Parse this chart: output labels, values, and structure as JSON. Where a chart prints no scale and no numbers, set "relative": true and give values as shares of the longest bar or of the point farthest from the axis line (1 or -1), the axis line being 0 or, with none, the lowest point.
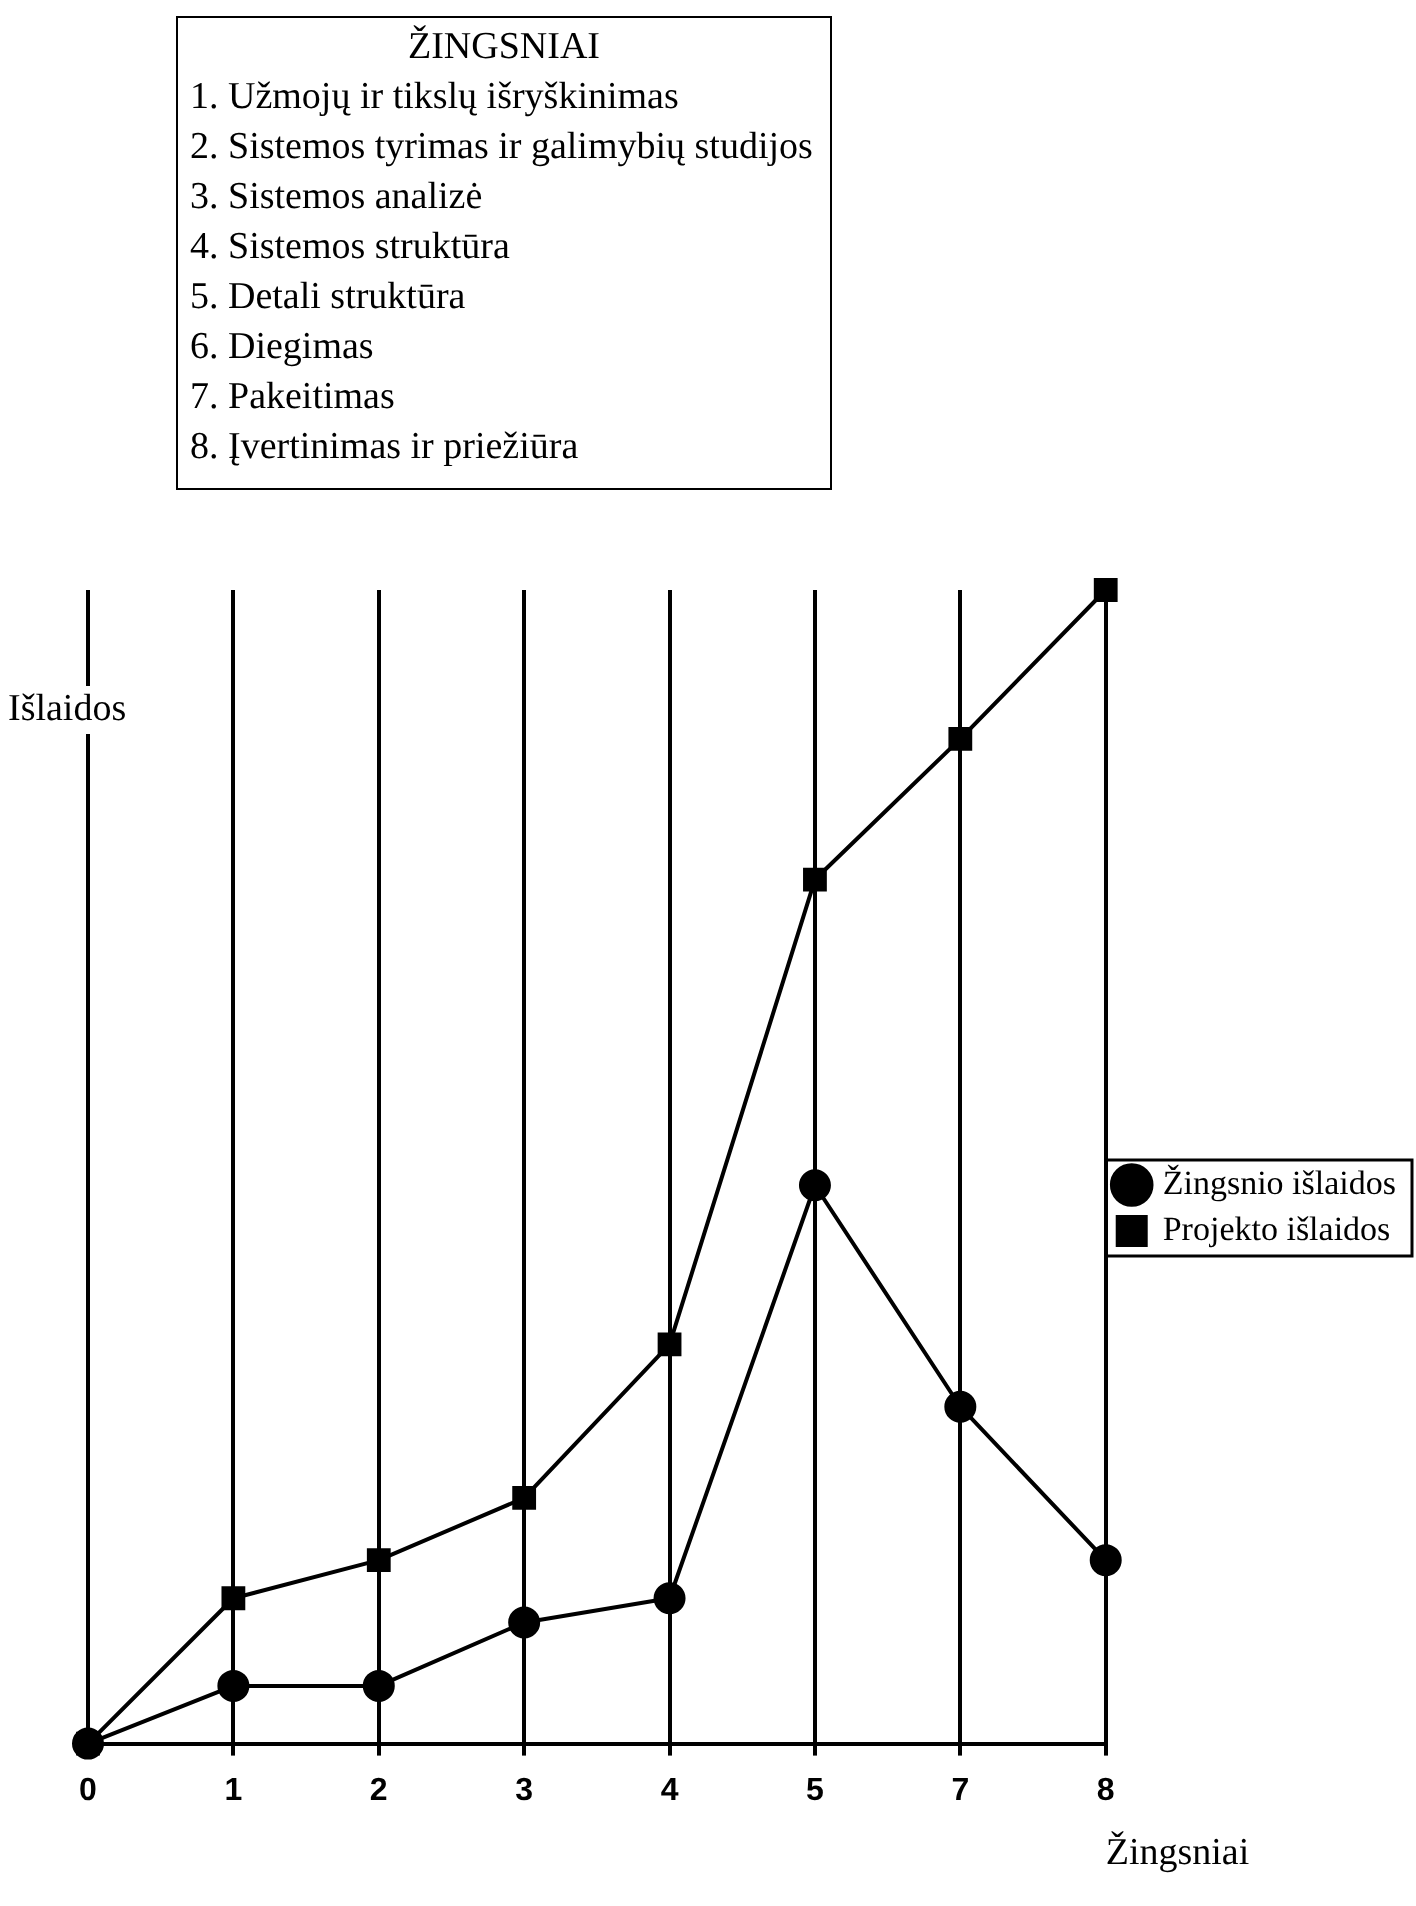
{
  "chart_data": {
    "type": "line",
    "relative": true,
    "xlabel": "Žingsniai",
    "ylabel": "Išlaidos",
    "categories": [
      "0",
      "1",
      "2",
      "3",
      "4",
      "5",
      "7",
      "8"
    ],
    "series": [
      {
        "name": "Žingsnio išlaidos",
        "color": "#000000",
        "marker": "circle",
        "values": [
          0,
          0.05,
          0.05,
          0.105,
          0.126,
          0.484,
          0.292,
          0.159
        ]
      },
      {
        "name": "Projekto išlaidos",
        "color": "#000000",
        "marker": "square",
        "values": [
          0,
          0.126,
          0.159,
          0.213,
          0.346,
          0.749,
          0.871,
          1
        ]
      }
    ],
    "annotations": [
      "ŽINGSNIAI",
      "1. Užmojų ir tikslų išryškinimas",
      "2. Sistemos tyrimas ir galimybių studijos",
      "3. Sistemos analizė",
      "4. Sistemos struktūra",
      "5. Detali struktūra",
      "6. Diegimas",
      "7. Pakeitimas",
      "8. Įvertinimas ir priežiūra"
    ],
    "grid": "x",
    "legend": "right"
  }
}
